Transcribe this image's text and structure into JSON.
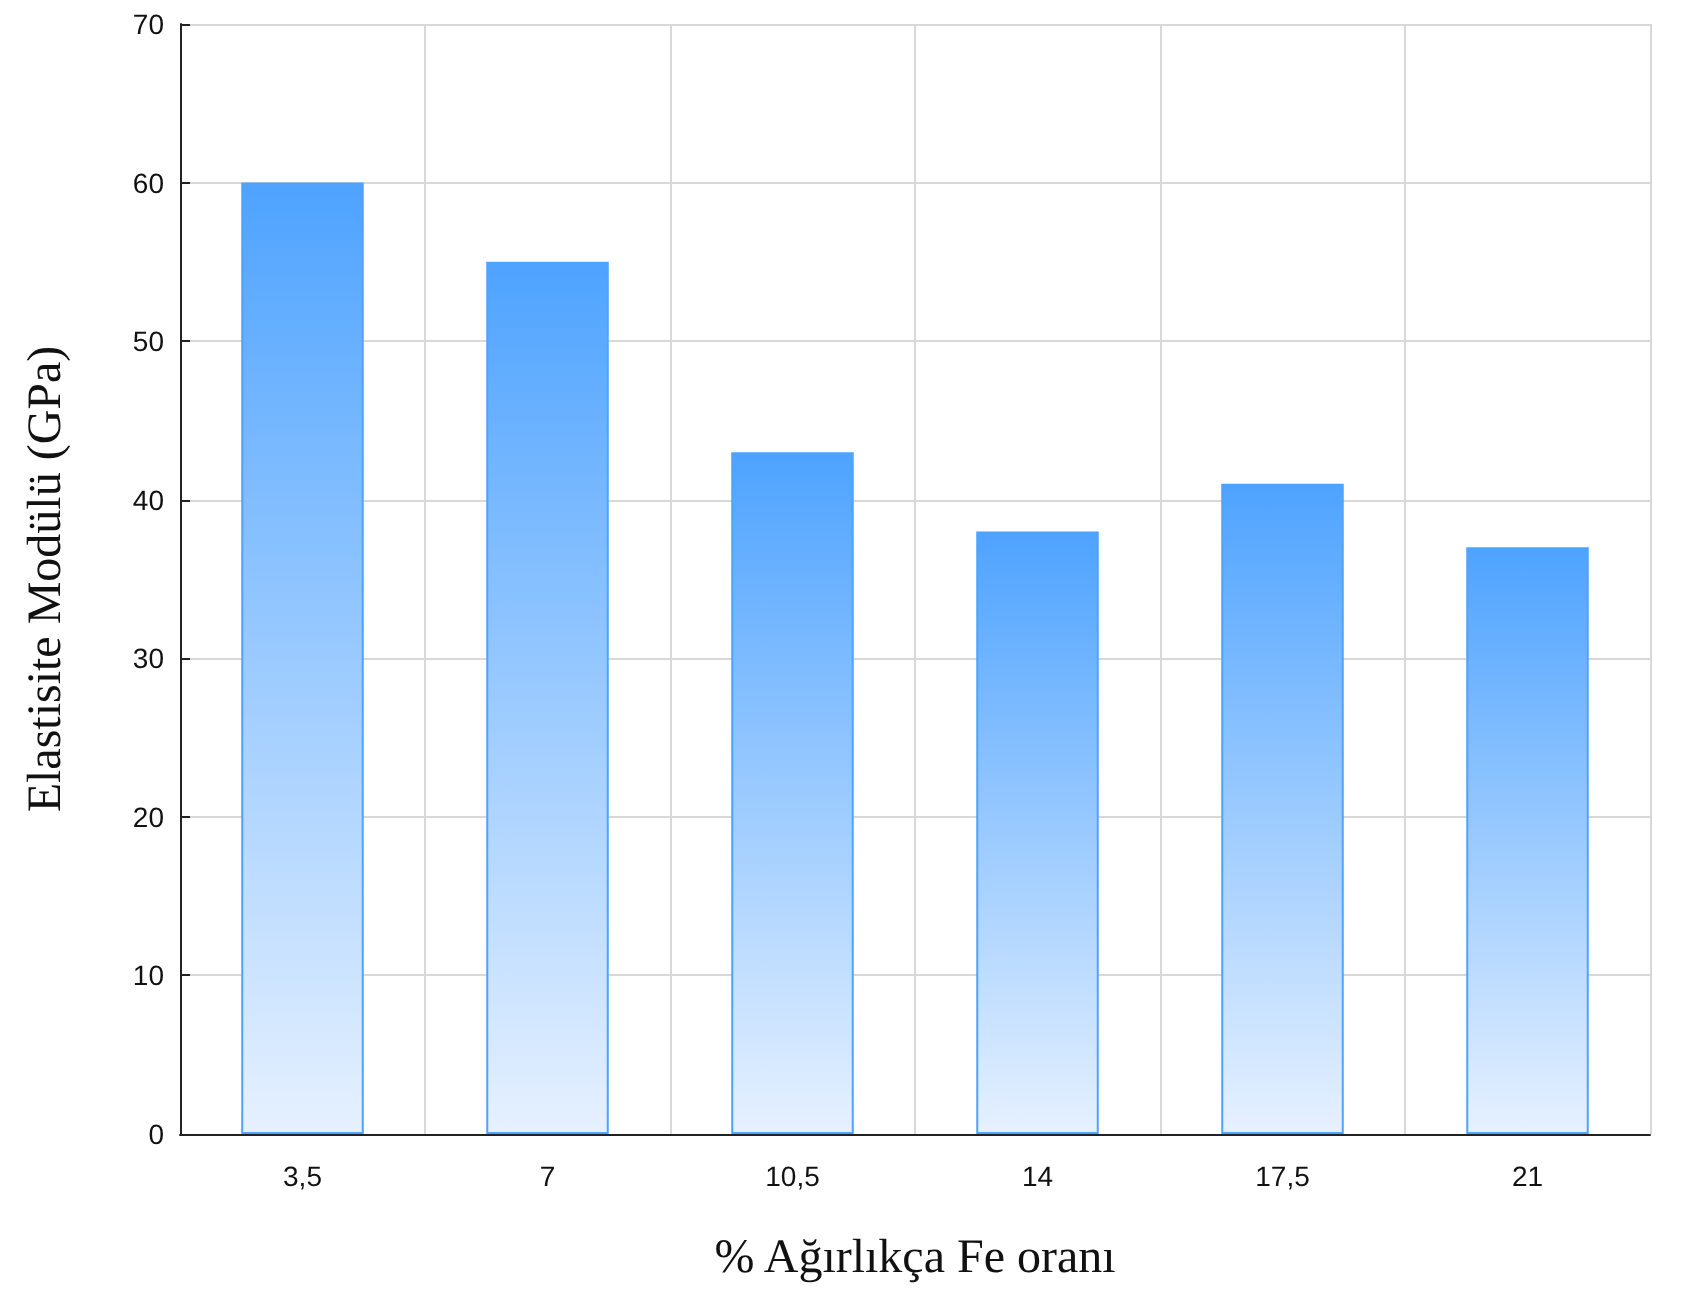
{
  "chart_data": {
    "type": "bar",
    "xlabel": "% Ağırlıkça Fe oranı",
    "ylabel": "Elastisite Modülü (GPa)",
    "categories": [
      "3,5",
      "7",
      "10,5",
      "14",
      "17,5",
      "21"
    ],
    "values": [
      60,
      55,
      43,
      38,
      41,
      37
    ],
    "color": "#4ea3ff",
    "ylim": [
      0,
      70
    ],
    "yticks": [
      0,
      10,
      20,
      30,
      40,
      50,
      60,
      70
    ],
    "grid": true
  }
}
